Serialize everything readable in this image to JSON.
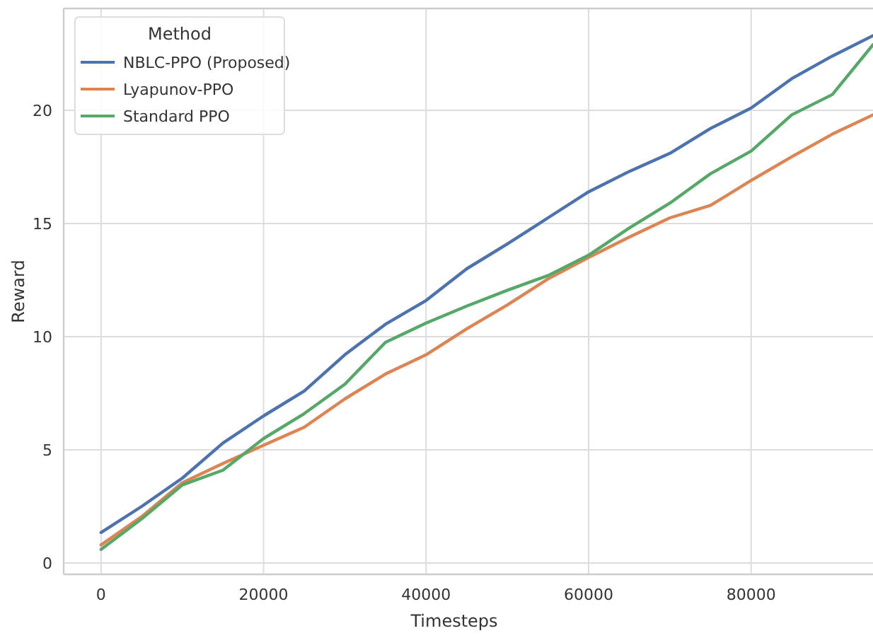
{
  "chart_data": {
    "type": "line",
    "xlabel": "Timesteps",
    "ylabel": "Reward",
    "legend_title": "Method",
    "legend": "top left",
    "grid": true,
    "line_style": "solid",
    "x": [
      0,
      5000,
      10000,
      15000,
      20000,
      25000,
      30000,
      35000,
      40000,
      45000,
      50000,
      55000,
      60000,
      65000,
      70000,
      75000,
      80000,
      85000,
      90000,
      95000
    ],
    "xlim": [
      -4600,
      95000
    ],
    "xticks": [
      0,
      20000,
      40000,
      60000,
      80000
    ],
    "ylim": [
      -0.5,
      24.5
    ],
    "yticks": [
      0,
      5,
      10,
      15,
      20
    ],
    "series": [
      {
        "name": "NBLC-PPO (Proposed)",
        "color": "#4c72b0",
        "values": [
          1.35,
          2.5,
          3.75,
          5.3,
          6.5,
          7.6,
          9.2,
          10.55,
          11.6,
          13.0,
          14.1,
          15.25,
          16.4,
          17.3,
          18.1,
          19.2,
          20.1,
          21.4,
          22.4,
          23.3
        ]
      },
      {
        "name": "Lyapunov-PPO",
        "color": "#dd8452",
        "values": [
          0.8,
          2.05,
          3.55,
          4.4,
          5.2,
          6.0,
          7.25,
          8.35,
          9.2,
          10.35,
          11.4,
          12.55,
          13.5,
          14.4,
          15.25,
          15.8,
          16.9,
          17.95,
          18.95,
          19.8
        ]
      },
      {
        "name": "Standard PPO",
        "color": "#55a868",
        "values": [
          0.6,
          1.95,
          3.45,
          4.1,
          5.5,
          6.6,
          7.9,
          9.75,
          10.6,
          11.35,
          12.05,
          12.7,
          13.6,
          14.8,
          15.9,
          17.2,
          18.2,
          19.8,
          20.7,
          22.9
        ]
      }
    ]
  }
}
